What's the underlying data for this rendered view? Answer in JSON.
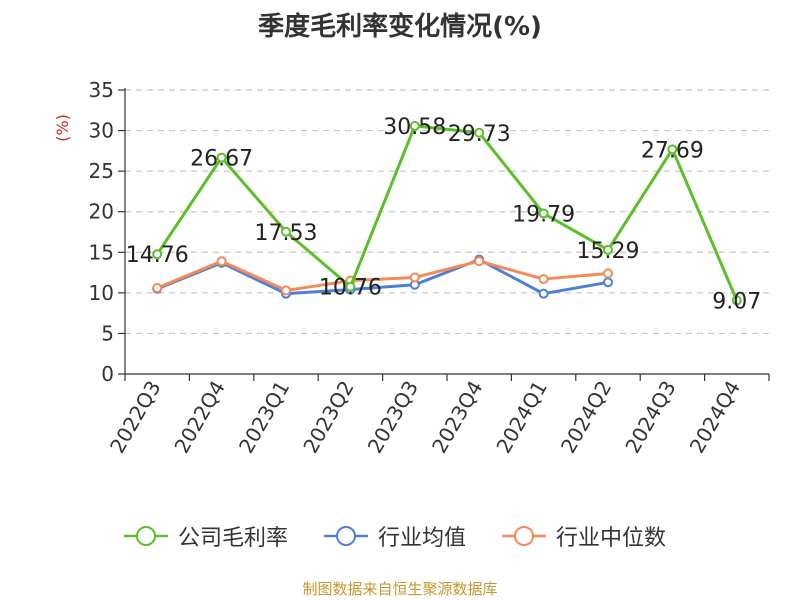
{
  "title": "季度毛利率变化情况(%)",
  "source": "制图数据来自恒生聚源数据库",
  "chart_data": {
    "type": "line",
    "title": "季度毛利率变化情况(%)",
    "ylabel": "(%)",
    "xlabel": "",
    "ylim": [
      0,
      35
    ],
    "yticks": [
      0,
      5,
      10,
      15,
      20,
      25,
      30,
      35
    ],
    "grid": true,
    "legend_position": "bottom",
    "categories": [
      "2022Q3",
      "2022Q4",
      "2023Q1",
      "2023Q2",
      "2023Q3",
      "2023Q4",
      "2024Q1",
      "2024Q2",
      "2024Q3",
      "2024Q4"
    ],
    "series": [
      {
        "name": "公司毛利率",
        "color": "#5cbf29",
        "values": [
          14.76,
          26.67,
          17.53,
          10.76,
          30.58,
          29.73,
          19.79,
          15.29,
          27.69,
          9.07
        ],
        "labels": [
          "14.76",
          "26.67",
          "17.53",
          "10.76",
          "30.58",
          "29.73",
          "19.79",
          "15.29",
          "27.69",
          "9.07"
        ]
      },
      {
        "name": "行业均值",
        "color": "#4e7fd8",
        "values": [
          10.5,
          13.7,
          9.9,
          10.4,
          11.0,
          14.1,
          9.9,
          11.3,
          null,
          null
        ]
      },
      {
        "name": "行业中位数",
        "color": "#f38a58",
        "values": [
          10.6,
          13.9,
          10.3,
          11.5,
          11.9,
          13.9,
          11.7,
          12.4,
          null,
          null
        ]
      }
    ]
  }
}
